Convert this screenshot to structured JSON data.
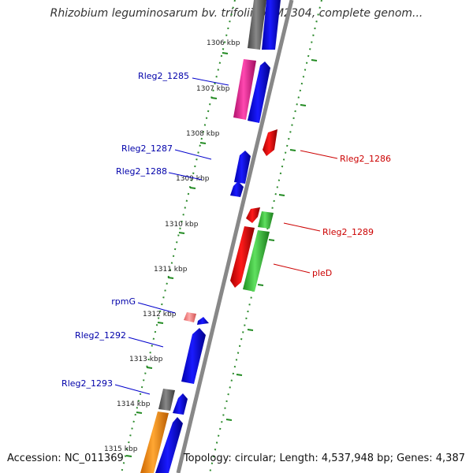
{
  "title": "Rhizobium leguminosarum bv. trifolii WSM2304, complete genom...",
  "accession_text": "Accession: NC_011369",
  "summary_text": "Topology: circular; Length: 4,537,948 bp; Genes: 4,387",
  "colors": {
    "forward_gene": "#0000ee",
    "reverse_gene": "#ee0000",
    "backbone": "#888888",
    "tick": "#228b22",
    "label_forward": "#0000aa",
    "label_reverse": "#cc0000",
    "gray_feature": "#666666",
    "pink_feature": "#e0208a",
    "green_feature": "#33bb33",
    "orange_feature": "#ff8c00",
    "rrna_light": "#f08080"
  },
  "ticks": [
    {
      "label": "1306 kbp"
    },
    {
      "label": "1307 kbp"
    },
    {
      "label": "1308 kbp"
    },
    {
      "label": "1309 kbp"
    },
    {
      "label": "1310 kbp"
    },
    {
      "label": "1311 kbp"
    },
    {
      "label": "1312 kbp"
    },
    {
      "label": "1313 kbp"
    },
    {
      "label": "1314 kbp"
    },
    {
      "label": "1315 kbp"
    }
  ],
  "gene_labels": [
    {
      "name": "Rleg2_1285",
      "strand": "forward"
    },
    {
      "name": "Rleg2_1287",
      "strand": "forward"
    },
    {
      "name": "Rleg2_1288",
      "strand": "forward"
    },
    {
      "name": "rpmG",
      "strand": "forward"
    },
    {
      "name": "Rleg2_1292",
      "strand": "forward"
    },
    {
      "name": "Rleg2_1293",
      "strand": "forward"
    },
    {
      "name": "Rleg2_1286",
      "strand": "reverse"
    },
    {
      "name": "Rleg2_1289",
      "strand": "reverse"
    },
    {
      "name": "pleD",
      "strand": "reverse"
    }
  ]
}
